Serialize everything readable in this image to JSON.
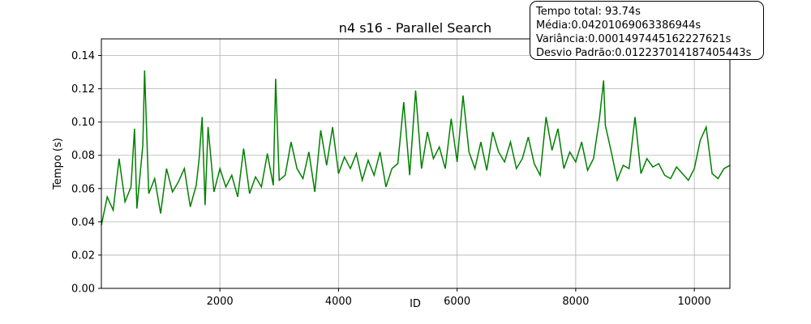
{
  "chart_data": {
    "type": "line",
    "title": "n4 s16 - Parallel Search",
    "xlabel": "ID",
    "ylabel": "Tempo (s)",
    "xlim": [
      1,
      10600
    ],
    "ylim": [
      0,
      0.15
    ],
    "x_ticks": [
      2000,
      4000,
      6000,
      8000,
      10000
    ],
    "x_tick_labels": [
      "2000",
      "4000",
      "6000",
      "8000",
      "10000"
    ],
    "y_ticks": [
      0.0,
      0.02,
      0.04,
      0.06,
      0.08,
      0.1,
      0.12,
      0.14
    ],
    "y_tick_labels": [
      "0.00",
      "0.02",
      "0.04",
      "0.06",
      "0.08",
      "0.10",
      "0.12",
      "0.14"
    ],
    "grid": true,
    "series": [
      {
        "color": "#008000",
        "points": [
          [
            0,
            0.038
          ],
          [
            100,
            0.055
          ],
          [
            200,
            0.047
          ],
          [
            300,
            0.078
          ],
          [
            400,
            0.052
          ],
          [
            500,
            0.061
          ],
          [
            560,
            0.096
          ],
          [
            600,
            0.048
          ],
          [
            700,
            0.086
          ],
          [
            730,
            0.131
          ],
          [
            800,
            0.057
          ],
          [
            900,
            0.066
          ],
          [
            1000,
            0.045
          ],
          [
            1100,
            0.072
          ],
          [
            1200,
            0.058
          ],
          [
            1300,
            0.064
          ],
          [
            1400,
            0.072
          ],
          [
            1500,
            0.049
          ],
          [
            1600,
            0.062
          ],
          [
            1650,
            0.078
          ],
          [
            1700,
            0.103
          ],
          [
            1750,
            0.05
          ],
          [
            1800,
            0.097
          ],
          [
            1900,
            0.058
          ],
          [
            2000,
            0.072
          ],
          [
            2100,
            0.061
          ],
          [
            2200,
            0.068
          ],
          [
            2300,
            0.055
          ],
          [
            2400,
            0.084
          ],
          [
            2500,
            0.057
          ],
          [
            2600,
            0.067
          ],
          [
            2700,
            0.061
          ],
          [
            2800,
            0.081
          ],
          [
            2900,
            0.062
          ],
          [
            2940,
            0.126
          ],
          [
            3000,
            0.065
          ],
          [
            3100,
            0.068
          ],
          [
            3200,
            0.088
          ],
          [
            3300,
            0.072
          ],
          [
            3400,
            0.066
          ],
          [
            3500,
            0.082
          ],
          [
            3600,
            0.058
          ],
          [
            3700,
            0.095
          ],
          [
            3800,
            0.074
          ],
          [
            3900,
            0.097
          ],
          [
            4000,
            0.069
          ],
          [
            4100,
            0.079
          ],
          [
            4200,
            0.072
          ],
          [
            4300,
            0.081
          ],
          [
            4400,
            0.065
          ],
          [
            4500,
            0.077
          ],
          [
            4600,
            0.068
          ],
          [
            4700,
            0.082
          ],
          [
            4800,
            0.061
          ],
          [
            4900,
            0.072
          ],
          [
            5000,
            0.075
          ],
          [
            5100,
            0.112
          ],
          [
            5200,
            0.068
          ],
          [
            5300,
            0.119
          ],
          [
            5400,
            0.072
          ],
          [
            5500,
            0.094
          ],
          [
            5600,
            0.078
          ],
          [
            5700,
            0.085
          ],
          [
            5800,
            0.072
          ],
          [
            5900,
            0.102
          ],
          [
            6000,
            0.076
          ],
          [
            6100,
            0.116
          ],
          [
            6200,
            0.082
          ],
          [
            6300,
            0.072
          ],
          [
            6400,
            0.088
          ],
          [
            6500,
            0.071
          ],
          [
            6600,
            0.094
          ],
          [
            6700,
            0.082
          ],
          [
            6800,
            0.076
          ],
          [
            6900,
            0.088
          ],
          [
            7000,
            0.072
          ],
          [
            7100,
            0.078
          ],
          [
            7200,
            0.091
          ],
          [
            7300,
            0.075
          ],
          [
            7400,
            0.068
          ],
          [
            7500,
            0.103
          ],
          [
            7600,
            0.083
          ],
          [
            7700,
            0.096
          ],
          [
            7800,
            0.072
          ],
          [
            7900,
            0.082
          ],
          [
            8000,
            0.076
          ],
          [
            8100,
            0.088
          ],
          [
            8200,
            0.071
          ],
          [
            8300,
            0.078
          ],
          [
            8400,
            0.102
          ],
          [
            8470,
            0.125
          ],
          [
            8500,
            0.098
          ],
          [
            8600,
            0.082
          ],
          [
            8700,
            0.065
          ],
          [
            8800,
            0.074
          ],
          [
            8900,
            0.072
          ],
          [
            9000,
            0.103
          ],
          [
            9100,
            0.069
          ],
          [
            9200,
            0.078
          ],
          [
            9300,
            0.073
          ],
          [
            9400,
            0.075
          ],
          [
            9500,
            0.068
          ],
          [
            9600,
            0.066
          ],
          [
            9700,
            0.073
          ],
          [
            9800,
            0.069
          ],
          [
            9900,
            0.065
          ],
          [
            10000,
            0.072
          ],
          [
            10100,
            0.089
          ],
          [
            10200,
            0.097
          ],
          [
            10300,
            0.069
          ],
          [
            10400,
            0.066
          ],
          [
            10500,
            0.072
          ],
          [
            10600,
            0.074
          ]
        ]
      }
    ],
    "stats_box_position": "top-right"
  },
  "stats": {
    "line1": "Tempo total: 93.74s",
    "line2": "Média: 0.042010690633869 44s",
    "line3": "Variância: 0.00014974451622276 21s",
    "line4": "Desvio Padrão: 0.01223701418740 5443s"
  }
}
